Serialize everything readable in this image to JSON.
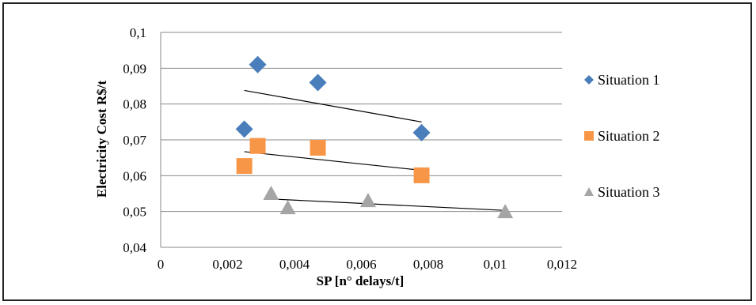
{
  "chart_data": {
    "type": "scatter",
    "xlabel": "SP [n° delays/t]",
    "ylabel": "Electricity Cost R$/t",
    "xlim": [
      0,
      0.012
    ],
    "ylim": [
      0.04,
      0.1
    ],
    "x_ticks": [
      "0",
      "0,002",
      "0,004",
      "0,006",
      "0,008",
      "0,01",
      "0,012"
    ],
    "y_ticks": [
      "0,04",
      "0,05",
      "0,06",
      "0,07",
      "0,08",
      "0,09",
      "0,1"
    ],
    "grid": "horizontal",
    "legend_position": "right",
    "series": [
      {
        "name": "Situation 1",
        "marker": "diamond",
        "color": "#4a7ebb",
        "points": [
          [
            0.0025,
            0.073
          ],
          [
            0.0029,
            0.091
          ],
          [
            0.0047,
            0.086
          ],
          [
            0.0078,
            0.072
          ]
        ],
        "trendline": [
          [
            0.0025,
            0.0838
          ],
          [
            0.0078,
            0.075
          ]
        ]
      },
      {
        "name": "Situation 2",
        "marker": "square",
        "color": "#f79646",
        "points": [
          [
            0.0025,
            0.0627
          ],
          [
            0.0029,
            0.0683
          ],
          [
            0.0047,
            0.0678
          ],
          [
            0.0078,
            0.0601
          ]
        ],
        "trendline": [
          [
            0.0025,
            0.0667
          ],
          [
            0.0078,
            0.0615
          ]
        ]
      },
      {
        "name": "Situation 3",
        "marker": "triangle",
        "color": "#a5a5a5",
        "points": [
          [
            0.0033,
            0.055
          ],
          [
            0.0038,
            0.051
          ],
          [
            0.0062,
            0.053
          ],
          [
            0.0103,
            0.0499
          ]
        ],
        "trendline": [
          [
            0.0033,
            0.0535
          ],
          [
            0.0103,
            0.0503
          ]
        ]
      }
    ]
  }
}
